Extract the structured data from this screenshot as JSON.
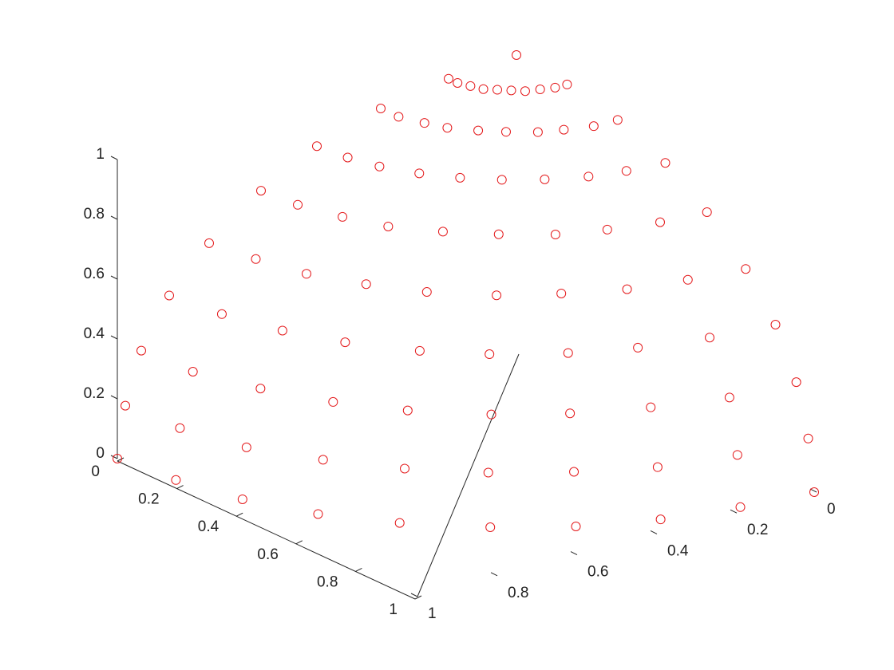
{
  "chart_data": {
    "type": "scatter3d",
    "color": "#e41a1c",
    "xlim": [
      0,
      1
    ],
    "ylim": [
      0,
      1
    ],
    "zlim": [
      0,
      1
    ],
    "xticks": [
      0,
      0.2,
      0.4,
      0.6,
      0.8,
      1
    ],
    "yticks": [
      0,
      0.2,
      0.4,
      0.6,
      0.8,
      1
    ],
    "zticks": [
      0,
      0.2,
      0.4,
      0.6,
      0.8,
      1
    ],
    "x": [
      0,
      0.17,
      0.17,
      0.16,
      0.15,
      0.13,
      0.11,
      0.09,
      0.06,
      0.03,
      0,
      0.34,
      0.34,
      0.32,
      0.3,
      0.26,
      0.22,
      0.17,
      0.12,
      0.06,
      0,
      0.5,
      0.49,
      0.47,
      0.43,
      0.38,
      0.32,
      0.25,
      0.17,
      0.09,
      0,
      0.64,
      0.63,
      0.6,
      0.56,
      0.49,
      0.41,
      0.32,
      0.22,
      0.11,
      0,
      0.77,
      0.75,
      0.72,
      0.66,
      0.59,
      0.49,
      0.38,
      0.26,
      0.13,
      0,
      0.87,
      0.85,
      0.81,
      0.75,
      0.66,
      0.56,
      0.43,
      0.3,
      0.15,
      0,
      0.94,
      0.93,
      0.88,
      0.81,
      0.72,
      0.6,
      0.47,
      0.32,
      0.16,
      0,
      0.98,
      0.97,
      0.93,
      0.85,
      0.75,
      0.63,
      0.49,
      0.34,
      0.17,
      0,
      1,
      0.98,
      0.94,
      0.87,
      0.77,
      0.64,
      0.5,
      0.34,
      0.17,
      0
    ],
    "y": [
      0,
      0,
      0.03,
      0.06,
      0.09,
      0.11,
      0.13,
      0.15,
      0.16,
      0.17,
      0.17,
      0,
      0.06,
      0.12,
      0.17,
      0.22,
      0.26,
      0.3,
      0.32,
      0.34,
      0.34,
      0,
      0.09,
      0.17,
      0.25,
      0.32,
      0.38,
      0.43,
      0.47,
      0.49,
      0.5,
      0,
      0.11,
      0.22,
      0.32,
      0.41,
      0.49,
      0.56,
      0.6,
      0.63,
      0.64,
      0,
      0.13,
      0.26,
      0.38,
      0.49,
      0.59,
      0.66,
      0.72,
      0.75,
      0.77,
      0,
      0.15,
      0.3,
      0.43,
      0.56,
      0.66,
      0.75,
      0.81,
      0.85,
      0.87,
      0,
      0.16,
      0.32,
      0.47,
      0.6,
      0.72,
      0.81,
      0.88,
      0.93,
      0.94,
      0,
      0.17,
      0.34,
      0.49,
      0.63,
      0.75,
      0.85,
      0.93,
      0.97,
      0.98,
      0,
      0.17,
      0.34,
      0.5,
      0.64,
      0.77,
      0.87,
      0.94,
      0.98,
      1
    ],
    "z": [
      1,
      0.98,
      0.98,
      0.98,
      0.98,
      0.98,
      0.98,
      0.98,
      0.98,
      0.98,
      0.98,
      0.94,
      0.94,
      0.94,
      0.94,
      0.94,
      0.94,
      0.94,
      0.94,
      0.94,
      0.94,
      0.87,
      0.87,
      0.87,
      0.87,
      0.87,
      0.87,
      0.87,
      0.87,
      0.87,
      0.87,
      0.77,
      0.77,
      0.77,
      0.77,
      0.77,
      0.77,
      0.77,
      0.77,
      0.77,
      0.77,
      0.64,
      0.64,
      0.64,
      0.64,
      0.64,
      0.64,
      0.64,
      0.64,
      0.64,
      0.64,
      0.5,
      0.5,
      0.5,
      0.5,
      0.5,
      0.5,
      0.5,
      0.5,
      0.5,
      0.5,
      0.34,
      0.34,
      0.34,
      0.34,
      0.34,
      0.34,
      0.34,
      0.34,
      0.34,
      0.34,
      0.17,
      0.17,
      0.17,
      0.17,
      0.17,
      0.17,
      0.17,
      0.17,
      0.17,
      0.17,
      0,
      0,
      0,
      0,
      0,
      0,
      0,
      0,
      0,
      0
    ]
  }
}
